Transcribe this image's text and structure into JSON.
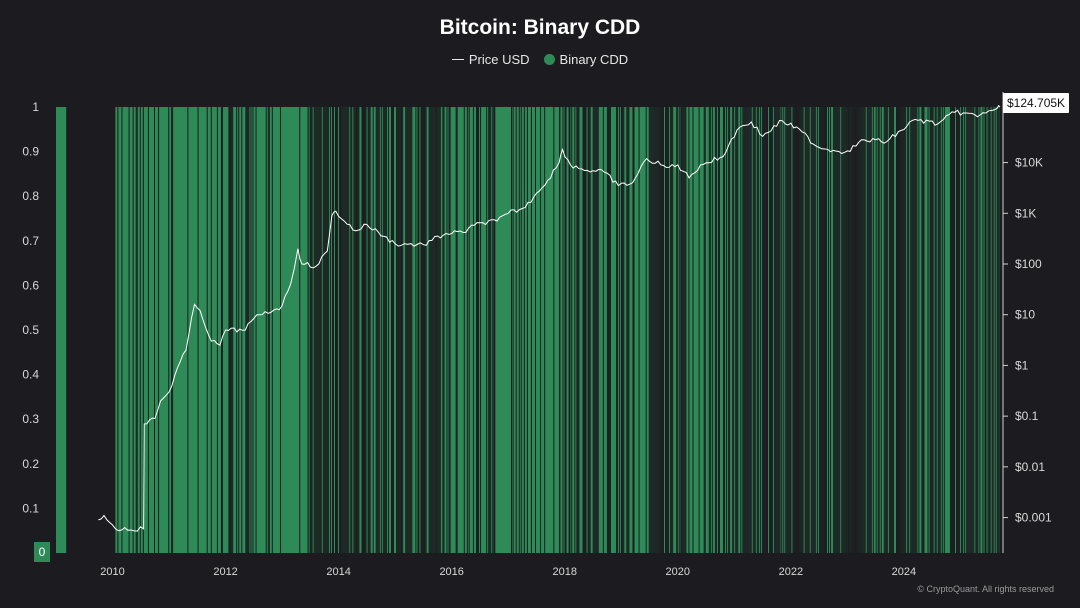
{
  "colors": {
    "background": "#1c1c20",
    "binary_cdd": "#2e8b57",
    "price_line": "#ffffff",
    "axis_text": "#d8d8d8"
  },
  "last_price_label": "$124.705K",
  "zero_label": "0",
  "watermark": "© CryptoQuant. All rights reserved",
  "chart_data": {
    "type": "line",
    "title": "Bitcoin: Binary CDD",
    "legend_position": "top-center",
    "legend": [
      {
        "label": "Price USD",
        "marker": "line",
        "color": "#ffffff"
      },
      {
        "label": "Binary CDD",
        "marker": "dot",
        "color": "#2e8b57"
      }
    ],
    "x_range": [
      2009.0,
      2025.7
    ],
    "x_ticks": [
      "2010",
      "2012",
      "2014",
      "2016",
      "2018",
      "2020",
      "2022",
      "2024"
    ],
    "left_axis": {
      "ylim": [
        0,
        1
      ],
      "ticks": [
        "0.1",
        "0.2",
        "0.3",
        "0.4",
        "0.5",
        "0.6",
        "0.7",
        "0.8",
        "0.9",
        "1"
      ],
      "tick_values": [
        0.1,
        0.2,
        0.3,
        0.4,
        0.5,
        0.6,
        0.7,
        0.8,
        0.9,
        1
      ]
    },
    "right_axis": {
      "scale": "log",
      "ticks": [
        "$0.001",
        "$0.01",
        "$0.1",
        "$1",
        "$10",
        "$100",
        "$1K",
        "$10K"
      ],
      "tick_values": [
        0.001,
        0.01,
        0.1,
        1,
        10,
        100,
        1000,
        10000
      ]
    },
    "binary_cdd_zero_periods": [
      [
        2009.18,
        2010.05
      ],
      [
        2012.05,
        2012.06
      ],
      [
        2012.35,
        2012.36
      ],
      [
        2013.45,
        2013.47
      ],
      [
        2014.02,
        2014.03
      ],
      [
        2014.3,
        2014.31
      ],
      [
        2015.1,
        2015.11
      ],
      [
        2015.72,
        2015.73
      ],
      [
        2016.3,
        2016.31
      ],
      [
        2016.74,
        2016.75
      ],
      [
        2017.05,
        2017.06
      ],
      [
        2017.9,
        2017.91
      ],
      [
        2018.08,
        2018.1
      ],
      [
        2019.0,
        2019.01
      ],
      [
        2020.05,
        2020.06
      ],
      [
        2021.8,
        2021.81
      ],
      [
        2023.0,
        2023.01
      ],
      [
        2023.9,
        2023.91
      ],
      [
        2024.85,
        2024.86
      ],
      [
        2025.5,
        2025.51
      ]
    ],
    "series": [
      {
        "name": "Price USD",
        "axis": "right",
        "points": [
          [
            2009.75,
            0.0009
          ],
          [
            2009.85,
            0.0011
          ],
          [
            2009.95,
            0.0008
          ],
          [
            2010.05,
            0.0006
          ],
          [
            2010.55,
            0.0006
          ],
          [
            2010.56,
            0.07
          ],
          [
            2010.75,
            0.09
          ],
          [
            2010.85,
            0.2
          ],
          [
            2011.0,
            0.3
          ],
          [
            2011.15,
            0.9
          ],
          [
            2011.3,
            2.0
          ],
          [
            2011.45,
            16
          ],
          [
            2011.55,
            12
          ],
          [
            2011.75,
            3
          ],
          [
            2011.9,
            2.5
          ],
          [
            2012.0,
            5
          ],
          [
            2012.3,
            4.9
          ],
          [
            2012.6,
            10
          ],
          [
            2012.9,
            13
          ],
          [
            2013.0,
            15
          ],
          [
            2013.15,
            40
          ],
          [
            2013.28,
            200
          ],
          [
            2013.35,
            100
          ],
          [
            2013.6,
            90
          ],
          [
            2013.8,
            180
          ],
          [
            2013.88,
            900
          ],
          [
            2013.95,
            1100
          ],
          [
            2014.1,
            700
          ],
          [
            2014.3,
            450
          ],
          [
            2014.5,
            600
          ],
          [
            2014.8,
            350
          ],
          [
            2015.0,
            250
          ],
          [
            2015.5,
            240
          ],
          [
            2015.9,
            400
          ],
          [
            2016.2,
            420
          ],
          [
            2016.5,
            650
          ],
          [
            2016.8,
            700
          ],
          [
            2017.0,
            1000
          ],
          [
            2017.3,
            1300
          ],
          [
            2017.5,
            2500
          ],
          [
            2017.7,
            4500
          ],
          [
            2017.9,
            10000
          ],
          [
            2017.96,
            18000
          ],
          [
            2018.1,
            9000
          ],
          [
            2018.4,
            7000
          ],
          [
            2018.7,
            6500
          ],
          [
            2018.95,
            3500
          ],
          [
            2019.2,
            4000
          ],
          [
            2019.45,
            12000
          ],
          [
            2019.8,
            8000
          ],
          [
            2020.0,
            9000
          ],
          [
            2020.2,
            5000
          ],
          [
            2020.4,
            9000
          ],
          [
            2020.8,
            13000
          ],
          [
            2020.95,
            29000
          ],
          [
            2021.1,
            50000
          ],
          [
            2021.3,
            63000
          ],
          [
            2021.5,
            33000
          ],
          [
            2021.85,
            67000
          ],
          [
            2022.2,
            40000
          ],
          [
            2022.45,
            21000
          ],
          [
            2022.85,
            16500
          ],
          [
            2023.0,
            17000
          ],
          [
            2023.3,
            28000
          ],
          [
            2023.7,
            26000
          ],
          [
            2023.95,
            43000
          ],
          [
            2024.2,
            71000
          ],
          [
            2024.6,
            58000
          ],
          [
            2024.9,
            98000
          ],
          [
            2025.1,
            95000
          ],
          [
            2025.3,
            80000
          ],
          [
            2025.5,
            105000
          ],
          [
            2025.65,
            118000
          ],
          [
            2025.7,
            124705
          ]
        ]
      },
      {
        "name": "Binary CDD",
        "axis": "left",
        "description_values": "1 when coin days destroyed above threshold, otherwise 0"
      }
    ]
  }
}
